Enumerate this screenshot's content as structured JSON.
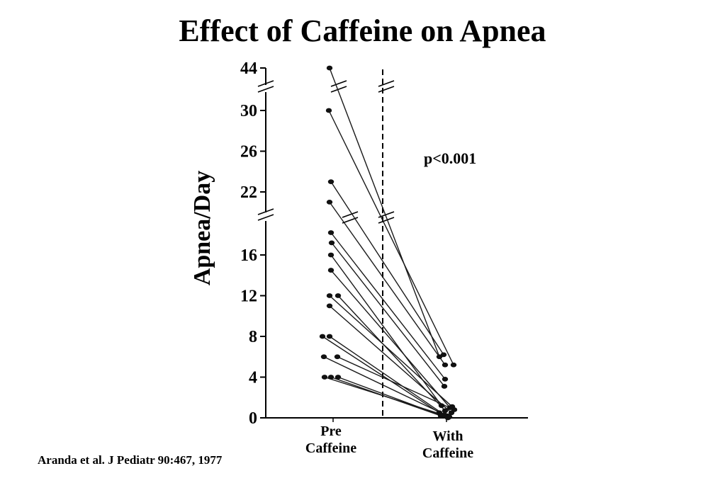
{
  "chart_data": {
    "type": "scatter",
    "title": "Effect of Caffeine on Apnea",
    "ylabel": "Apnea/Day",
    "xlabel": "",
    "categories": [
      "Pre\nCaffeine",
      "With\nCaffeine"
    ],
    "y_ticks": [
      "0",
      "4",
      "8",
      "12",
      "16",
      "22",
      "26",
      "30",
      "44"
    ],
    "annotation": "p<0.001",
    "axis_breaks": "broken y axis between 16 and 22 and between 30 and 44",
    "grid": false,
    "legend": "none",
    "pairs": [
      {
        "pre": 44,
        "post": 6
      },
      {
        "pre": 30,
        "post": 5.2
      },
      {
        "pre": 23,
        "post": 6.2
      },
      {
        "pre": 21,
        "post": 5.2
      },
      {
        "pre": 18,
        "post": 3.8
      },
      {
        "pre": 17,
        "post": 3.1
      },
      {
        "pre": 16,
        "post": 1.2
      },
      {
        "pre": 14.5,
        "post": 1
      },
      {
        "pre": 12,
        "post": 1.1
      },
      {
        "pre": 12,
        "post": 0.7
      },
      {
        "pre": 11,
        "post": 0.5
      },
      {
        "pre": 8,
        "post": 0.5
      },
      {
        "pre": 8,
        "post": 0.3
      },
      {
        "pre": 6,
        "post": 0.2
      },
      {
        "pre": 6,
        "post": 0.8
      },
      {
        "pre": 4,
        "post": 0.1
      },
      {
        "pre": 4,
        "post": 0.2
      },
      {
        "pre": 4,
        "post": 0
      }
    ]
  },
  "citation": "Aranda et al.  J Pediatr 90:467, 1977"
}
